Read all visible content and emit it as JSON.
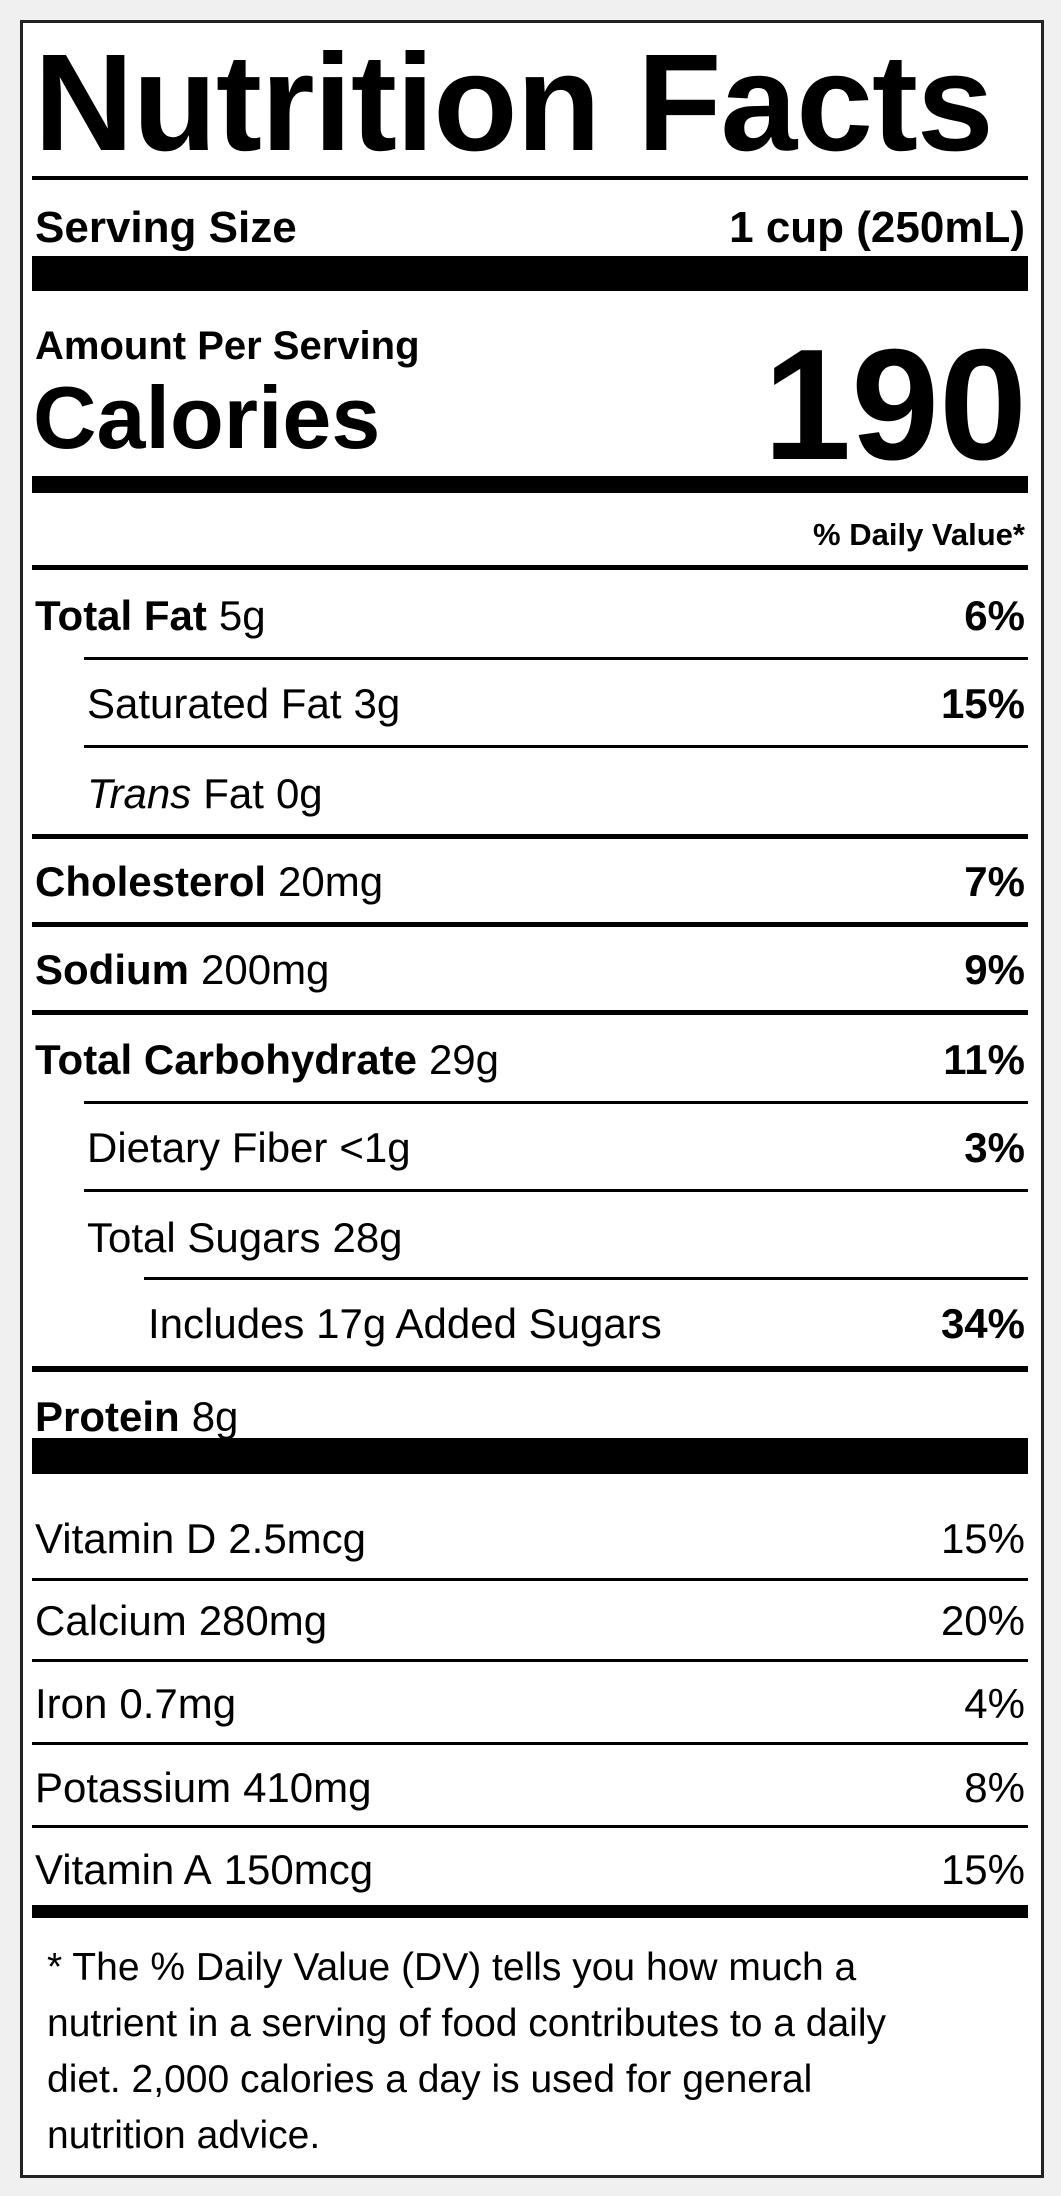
{
  "title": "Nutrition Facts",
  "serving": {
    "label": "Serving Size",
    "value": "1 cup (250mL)"
  },
  "amount_per_serving": "Amount Per Serving",
  "calories": {
    "label": "Calories",
    "value": 190
  },
  "daily_value_header": "% Daily Value*",
  "nutrients": [
    {
      "name": "Total Fat",
      "amount": "5g",
      "dv": "6%"
    },
    {
      "name": "Saturated Fat",
      "amount": "3g",
      "dv": "15%"
    },
    {
      "name_italic": "Trans",
      "name": "Fat",
      "amount": "0g"
    },
    {
      "name": "Cholesterol",
      "amount": "20mg",
      "dv": "7%"
    },
    {
      "name": "Sodium",
      "amount": "200mg",
      "dv": "9%"
    },
    {
      "name": "Total Carbohydrate",
      "amount": "29g",
      "dv": "11%"
    },
    {
      "name": "Dietary Fiber",
      "amount": "<1g",
      "dv": "3%"
    },
    {
      "name": "Total Sugars",
      "amount": "28g"
    },
    {
      "name": "Includes 17g Added Sugars",
      "dv": "34%"
    },
    {
      "name": "Protein",
      "amount": "8g"
    }
  ],
  "vitamins": [
    {
      "name": "Vitamin D",
      "amount": "2.5mcg",
      "dv": "15%"
    },
    {
      "name": "Calcium",
      "amount": "280mg",
      "dv": "20%"
    },
    {
      "name": "Iron",
      "amount": "0.7mg",
      "dv": "4%"
    },
    {
      "name": "Potassium",
      "amount": "410mg",
      "dv": "8%"
    },
    {
      "name": "Vitamin A",
      "amount": "150mcg",
      "dv": "15%"
    }
  ],
  "footnote": [
    "* The % Daily Value (DV) tells you how much a",
    "nutrient in a serving of food contributes to a daily",
    "diet. 2,000 calories a day is used for general",
    "nutrition advice."
  ]
}
